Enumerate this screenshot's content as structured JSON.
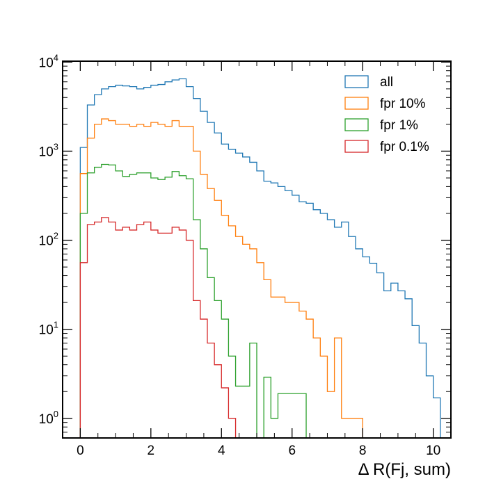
{
  "chart_data": {
    "type": "histogram",
    "xlabel": "Δ R(Fj, sum)",
    "ylabel": "",
    "xlim": [
      -0.5,
      10.5
    ],
    "ylim_log10": [
      -0.22,
      4.01
    ],
    "yscale": "log",
    "bin_width": 0.2,
    "bin_start": 0.0,
    "x_ticks": [
      0,
      2,
      4,
      6,
      8,
      10
    ],
    "y_ticks": [
      {
        "value": 1,
        "base": "10",
        "exp": "0"
      },
      {
        "value": 10,
        "base": "10",
        "exp": "1"
      },
      {
        "value": 100,
        "base": "10",
        "exp": "2"
      },
      {
        "value": 1000,
        "base": "10",
        "exp": "3"
      },
      {
        "value": 10000,
        "base": "10",
        "exp": "4"
      }
    ],
    "legend_position": "top-right",
    "series": [
      {
        "name": "all",
        "color": "#1f77b4",
        "values": [
          1100,
          3300,
          4300,
          5000,
          5300,
          5500,
          5400,
          5300,
          5000,
          5200,
          5500,
          5600,
          6000,
          6300,
          6500,
          5300,
          3900,
          2800,
          2100,
          1600,
          1200,
          1050,
          950,
          860,
          750,
          600,
          460,
          440,
          400,
          360,
          320,
          270,
          260,
          220,
          200,
          170,
          140,
          160,
          110,
          80,
          65,
          55,
          43,
          27,
          33,
          27,
          22,
          11,
          7,
          3,
          1.7,
          0,
          0,
          0,
          0
        ]
      },
      {
        "name": "fpr 10%",
        "color": "#ff7f0e",
        "values": [
          560,
          1400,
          2000,
          2300,
          2200,
          2000,
          2000,
          1900,
          2000,
          1900,
          2100,
          2000,
          1900,
          2200,
          1900,
          1900,
          1000,
          550,
          380,
          280,
          190,
          145,
          110,
          90,
          80,
          56,
          36,
          23,
          23,
          20,
          20,
          16,
          13,
          8,
          5,
          2,
          8,
          1,
          1,
          1,
          0,
          0,
          0,
          0,
          0
        ]
      },
      {
        "name": "fpr 1%",
        "color": "#2ca02c",
        "values": [
          200,
          570,
          660,
          710,
          700,
          600,
          520,
          550,
          570,
          570,
          500,
          480,
          510,
          590,
          530,
          490,
          170,
          80,
          38,
          21,
          13,
          5,
          2.3,
          2.3,
          7,
          0,
          2.9,
          1,
          1.9,
          1.9,
          1.9,
          1.9,
          0,
          0,
          0
        ]
      },
      {
        "name": "fpr 0.1%",
        "color": "#d62728",
        "values": [
          56,
          150,
          160,
          180,
          160,
          130,
          140,
          130,
          150,
          160,
          130,
          120,
          120,
          140,
          130,
          100,
          21,
          13,
          7,
          4,
          2.2,
          1,
          0,
          0
        ]
      }
    ]
  }
}
